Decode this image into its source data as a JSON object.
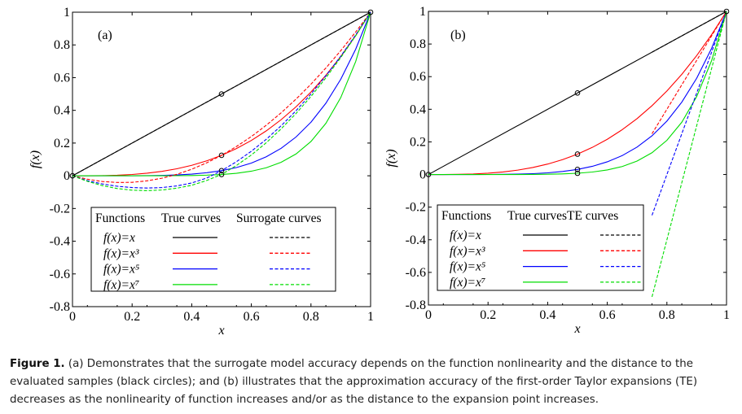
{
  "chart_data": [
    {
      "type": "line",
      "panel_label": "(a)",
      "xlabel": "x",
      "ylabel": "f(x)",
      "xlim": [
        0,
        1
      ],
      "ylim": [
        -0.8,
        1
      ],
      "xticks": [
        0,
        0.2,
        0.4,
        0.6,
        0.8,
        1
      ],
      "xtick_labels": [
        "0",
        "0.2",
        "0.4",
        "0.6",
        "0.8",
        "1"
      ],
      "yticks": [
        1,
        0.8,
        0.6,
        0.4,
        0.2,
        0,
        -0.2,
        -0.4,
        -0.6,
        -0.8
      ],
      "ytick_labels": [
        "1",
        "0.8",
        "0.6",
        "0.4",
        "0.2",
        "0",
        "-0.2",
        "-0.4",
        "-0.6",
        "-0.8"
      ],
      "legend": {
        "placement": "bottom-center",
        "headers": [
          "Functions",
          "True curves",
          "Surrogate curves"
        ],
        "entries": [
          "f(x)=x",
          "f(x)=x³",
          "f(x)=x⁵",
          "f(x)=x⁷"
        ]
      },
      "colors": [
        "#000000",
        "#ff0000",
        "#0000ff",
        "#00dd00"
      ],
      "series": [
        {
          "name": "f(x)=x true",
          "color": "#000000",
          "style": "solid",
          "x": [
            0,
            1
          ],
          "y": [
            0,
            1
          ]
        },
        {
          "name": "f(x)=x³ true",
          "color": "#ff0000",
          "style": "solid",
          "x": [
            0,
            0.05,
            0.1,
            0.15,
            0.2,
            0.25,
            0.3,
            0.35,
            0.4,
            0.45,
            0.5,
            0.55,
            0.6,
            0.65,
            0.7,
            0.75,
            0.8,
            0.85,
            0.9,
            0.95,
            1
          ],
          "y": [
            0,
            0.0001,
            0.001,
            0.0034,
            0.008,
            0.0156,
            0.027,
            0.0429,
            0.064,
            0.0911,
            0.125,
            0.1664,
            0.216,
            0.2746,
            0.343,
            0.4219,
            0.512,
            0.6141,
            0.729,
            0.8574,
            1
          ]
        },
        {
          "name": "f(x)=x⁵ true",
          "color": "#0000ff",
          "style": "solid",
          "x": [
            0,
            0.05,
            0.1,
            0.15,
            0.2,
            0.25,
            0.3,
            0.35,
            0.4,
            0.45,
            0.5,
            0.55,
            0.6,
            0.65,
            0.7,
            0.75,
            0.8,
            0.85,
            0.9,
            0.95,
            1
          ],
          "y": [
            0,
            0,
            0,
            0.0001,
            0.0003,
            0.001,
            0.0024,
            0.0053,
            0.0102,
            0.0185,
            0.0313,
            0.0503,
            0.0778,
            0.116,
            0.1681,
            0.2373,
            0.3277,
            0.4437,
            0.5905,
            0.7738,
            1
          ]
        },
        {
          "name": "f(x)=x⁷ true",
          "color": "#00dd00",
          "style": "solid",
          "x": [
            0,
            0.05,
            0.1,
            0.15,
            0.2,
            0.25,
            0.3,
            0.35,
            0.4,
            0.45,
            0.5,
            0.55,
            0.6,
            0.65,
            0.7,
            0.75,
            0.8,
            0.85,
            0.9,
            0.95,
            1
          ],
          "y": [
            0,
            0,
            0,
            0,
            0,
            0.0001,
            0.0002,
            0.0006,
            0.0016,
            0.0037,
            0.0078,
            0.0152,
            0.028,
            0.049,
            0.0824,
            0.1335,
            0.2097,
            0.3206,
            0.4783,
            0.6983,
            1
          ]
        },
        {
          "name": "f(x)=x surrogate",
          "color": "#000000",
          "style": "dashed",
          "x": [
            0,
            1
          ],
          "y": [
            0,
            1
          ]
        },
        {
          "name": "f(x)=x³ surrogate",
          "color": "#ff0000",
          "style": "dashed",
          "x": [
            0,
            0.05,
            0.1,
            0.15,
            0.2,
            0.25,
            0.3,
            0.35,
            0.4,
            0.45,
            0.5,
            0.55,
            0.6,
            0.65,
            0.7,
            0.75,
            0.8,
            0.85,
            0.9,
            0.95,
            1
          ],
          "y": [
            0,
            -0.021,
            -0.035,
            -0.041,
            -0.04,
            -0.031,
            -0.015,
            0.009,
            0.04,
            0.079,
            0.125,
            0.179,
            0.24,
            0.309,
            0.385,
            0.469,
            0.56,
            0.659,
            0.765,
            0.879,
            1
          ]
        },
        {
          "name": "f(x)=x⁵ surrogate",
          "color": "#0000ff",
          "style": "dashed",
          "x": [
            0,
            0.05,
            0.1,
            0.15,
            0.2,
            0.25,
            0.3,
            0.35,
            0.4,
            0.45,
            0.5,
            0.55,
            0.6,
            0.65,
            0.7,
            0.75,
            0.8,
            0.85,
            0.9,
            0.95,
            1
          ],
          "y": [
            0,
            -0.03,
            -0.05,
            -0.064,
            -0.072,
            -0.075,
            -0.072,
            -0.062,
            -0.044,
            -0.014,
            0.031,
            0.086,
            0.15,
            0.223,
            0.306,
            0.398,
            0.5,
            0.611,
            0.731,
            0.861,
            1
          ]
        },
        {
          "name": "f(x)=x⁷ surrogate",
          "color": "#00dd00",
          "style": "dashed",
          "x": [
            0,
            0.05,
            0.1,
            0.15,
            0.2,
            0.25,
            0.3,
            0.35,
            0.4,
            0.45,
            0.5,
            0.55,
            0.6,
            0.65,
            0.7,
            0.75,
            0.8,
            0.85,
            0.9,
            0.95,
            1
          ],
          "y": [
            0,
            -0.034,
            -0.06,
            -0.078,
            -0.088,
            -0.091,
            -0.087,
            -0.076,
            -0.058,
            -0.029,
            0.008,
            0.063,
            0.127,
            0.202,
            0.287,
            0.381,
            0.485,
            0.599,
            0.723,
            0.856,
            1
          ]
        }
      ],
      "samples": {
        "x": [
          0,
          0.5,
          0.5,
          0.5,
          0.5,
          1
        ],
        "y": [
          0,
          0.5,
          0.125,
          0.0313,
          0.0078,
          1
        ]
      }
    },
    {
      "type": "line",
      "panel_label": "(b)",
      "xlabel": "x",
      "ylabel": "f(x)",
      "xlim": [
        0,
        1
      ],
      "ylim": [
        -0.8,
        1
      ],
      "xticks": [
        0,
        0.2,
        0.4,
        0.6,
        0.8,
        1
      ],
      "xtick_labels": [
        "0",
        "0.2",
        "0.4",
        "0.6",
        "0.8",
        "1"
      ],
      "yticks": [
        1,
        0.8,
        0.6,
        0.4,
        0.2,
        0,
        -0.2,
        -0.4,
        -0.6,
        -0.8
      ],
      "ytick_labels": [
        "1",
        "0.8",
        "0.6",
        "0.4",
        "0.2",
        "0",
        "-0.2",
        "-0.4",
        "-0.6",
        "-0.8"
      ],
      "legend": {
        "placement": "bottom-left",
        "headers": [
          "Functions",
          "True curves",
          "TE curves"
        ],
        "entries": [
          "f(x)=x",
          "f(x)=x³",
          "f(x)=x⁵",
          "f(x)=x⁷"
        ]
      },
      "colors": [
        "#000000",
        "#ff0000",
        "#0000ff",
        "#00dd00"
      ],
      "series": [
        {
          "name": "f(x)=x true",
          "color": "#000000",
          "style": "solid",
          "x": [
            0,
            1
          ],
          "y": [
            0,
            1
          ]
        },
        {
          "name": "f(x)=x³ true",
          "color": "#ff0000",
          "style": "solid",
          "x": [
            0,
            0.05,
            0.1,
            0.15,
            0.2,
            0.25,
            0.3,
            0.35,
            0.4,
            0.45,
            0.5,
            0.55,
            0.6,
            0.65,
            0.7,
            0.75,
            0.8,
            0.85,
            0.9,
            0.95,
            1
          ],
          "y": [
            0,
            0.0001,
            0.001,
            0.0034,
            0.008,
            0.0156,
            0.027,
            0.0429,
            0.064,
            0.0911,
            0.125,
            0.1664,
            0.216,
            0.2746,
            0.343,
            0.4219,
            0.512,
            0.6141,
            0.729,
            0.8574,
            1
          ]
        },
        {
          "name": "f(x)=x⁵ true",
          "color": "#0000ff",
          "style": "solid",
          "x": [
            0,
            0.05,
            0.1,
            0.15,
            0.2,
            0.25,
            0.3,
            0.35,
            0.4,
            0.45,
            0.5,
            0.55,
            0.6,
            0.65,
            0.7,
            0.75,
            0.8,
            0.85,
            0.9,
            0.95,
            1
          ],
          "y": [
            0,
            0,
            0,
            0.0001,
            0.0003,
            0.001,
            0.0024,
            0.0053,
            0.0102,
            0.0185,
            0.0313,
            0.0503,
            0.0778,
            0.116,
            0.1681,
            0.2373,
            0.3277,
            0.4437,
            0.5905,
            0.7738,
            1
          ]
        },
        {
          "name": "f(x)=x⁷ true",
          "color": "#00dd00",
          "style": "solid",
          "x": [
            0,
            0.05,
            0.1,
            0.15,
            0.2,
            0.25,
            0.3,
            0.35,
            0.4,
            0.45,
            0.5,
            0.55,
            0.6,
            0.65,
            0.7,
            0.75,
            0.8,
            0.85,
            0.9,
            0.95,
            1
          ],
          "y": [
            0,
            0,
            0,
            0,
            0,
            0.0001,
            0.0002,
            0.0006,
            0.0016,
            0.0037,
            0.0078,
            0.0152,
            0.028,
            0.049,
            0.0824,
            0.1335,
            0.2097,
            0.3206,
            0.4783,
            0.6983,
            1
          ]
        },
        {
          "name": "f(x)=x TE",
          "color": "#000000",
          "style": "dashed",
          "x": [
            0.75,
            1
          ],
          "y": [
            0.75,
            1
          ]
        },
        {
          "name": "f(x)=x³ TE",
          "color": "#ff0000",
          "style": "dashed",
          "x": [
            0.75,
            1
          ],
          "y": [
            0.25,
            1
          ]
        },
        {
          "name": "f(x)=x⁵ TE",
          "color": "#0000ff",
          "style": "dashed",
          "x": [
            0.75,
            1
          ],
          "y": [
            -0.25,
            1
          ]
        },
        {
          "name": "f(x)=x⁷ TE",
          "color": "#00dd00",
          "style": "dashed",
          "x": [
            0.75,
            1
          ],
          "y": [
            -0.75,
            1
          ]
        }
      ],
      "samples": {
        "x": [
          0,
          0.5,
          0.5,
          0.5,
          0.5,
          1
        ],
        "y": [
          0,
          0.5,
          0.125,
          0.0313,
          0.0078,
          1
        ]
      }
    }
  ],
  "caption": {
    "label": "Figure 1.",
    "text": "(a) Demonstrates that the surrogate model accuracy depends on the function nonlinearity and the distance to the evaluated samples (black circles); and (b) illustrates that the approximation accuracy of the first-order Taylor expansions (TE) decreases as the nonlinearity of function increases and/or as the distance to the expansion point increases."
  }
}
